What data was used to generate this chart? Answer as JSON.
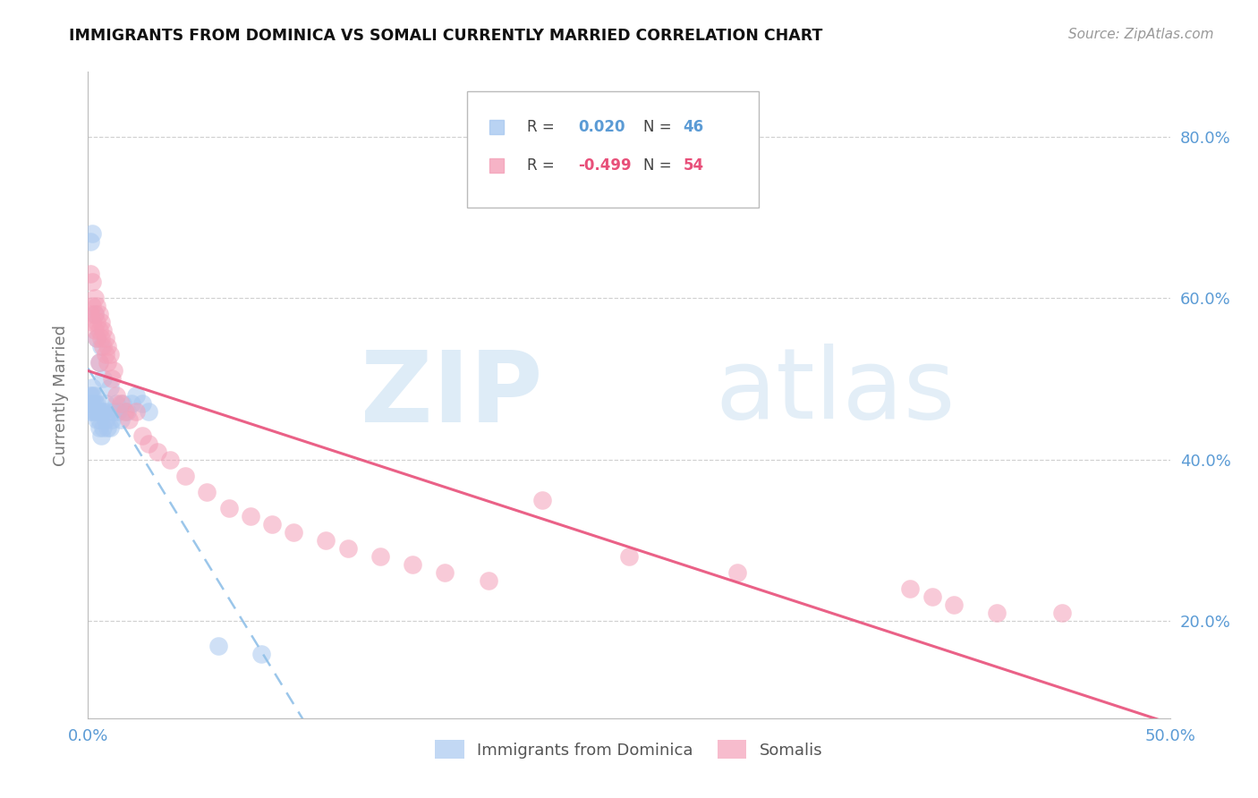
{
  "title": "IMMIGRANTS FROM DOMINICA VS SOMALI CURRENTLY MARRIED CORRELATION CHART",
  "source": "Source: ZipAtlas.com",
  "ylabel": "Currently Married",
  "xlim": [
    0.0,
    0.5
  ],
  "ylim": [
    0.08,
    0.88
  ],
  "blue_color": "#a8c8f0",
  "pink_color": "#f4a0b8",
  "trend_blue_color": "#90c0e8",
  "trend_pink_color": "#e8507a",
  "blue_alpha": 0.55,
  "pink_alpha": 0.55,
  "grid_color": "#cccccc",
  "spine_color": "#bbbbbb",
  "tick_color": "#5b9bd5",
  "ylabel_color": "#777777",
  "title_color": "#111111",
  "source_color": "#999999",
  "watermark_zip_color": "#d0e4f4",
  "watermark_atlas_color": "#c8dff0",
  "legend_r1": "0.020",
  "legend_n1": "46",
  "legend_r2": "-0.499",
  "legend_n2": "54",
  "dominica_x": [
    0.001,
    0.001,
    0.001,
    0.001,
    0.002,
    0.002,
    0.002,
    0.002,
    0.002,
    0.003,
    0.003,
    0.003,
    0.003,
    0.004,
    0.004,
    0.004,
    0.004,
    0.005,
    0.005,
    0.005,
    0.005,
    0.006,
    0.006,
    0.006,
    0.007,
    0.007,
    0.007,
    0.008,
    0.008,
    0.009,
    0.009,
    0.01,
    0.01,
    0.011,
    0.012,
    0.013,
    0.014,
    0.015,
    0.016,
    0.018,
    0.02,
    0.022,
    0.025,
    0.028,
    0.06,
    0.08
  ],
  "dominica_y": [
    0.46,
    0.47,
    0.48,
    0.67,
    0.46,
    0.47,
    0.48,
    0.49,
    0.68,
    0.46,
    0.47,
    0.48,
    0.58,
    0.45,
    0.46,
    0.47,
    0.55,
    0.44,
    0.45,
    0.46,
    0.52,
    0.43,
    0.46,
    0.54,
    0.44,
    0.46,
    0.5,
    0.45,
    0.47,
    0.44,
    0.46,
    0.44,
    0.49,
    0.45,
    0.46,
    0.47,
    0.46,
    0.45,
    0.47,
    0.46,
    0.47,
    0.48,
    0.47,
    0.46,
    0.17,
    0.16
  ],
  "somali_x": [
    0.001,
    0.001,
    0.002,
    0.002,
    0.002,
    0.003,
    0.003,
    0.003,
    0.004,
    0.004,
    0.004,
    0.005,
    0.005,
    0.005,
    0.006,
    0.006,
    0.007,
    0.007,
    0.008,
    0.008,
    0.009,
    0.009,
    0.01,
    0.011,
    0.012,
    0.013,
    0.015,
    0.017,
    0.019,
    0.022,
    0.025,
    0.028,
    0.032,
    0.038,
    0.045,
    0.055,
    0.065,
    0.075,
    0.085,
    0.095,
    0.11,
    0.12,
    0.135,
    0.15,
    0.165,
    0.185,
    0.21,
    0.25,
    0.3,
    0.38,
    0.39,
    0.4,
    0.42,
    0.45
  ],
  "somali_y": [
    0.63,
    0.58,
    0.59,
    0.57,
    0.62,
    0.58,
    0.6,
    0.56,
    0.59,
    0.57,
    0.55,
    0.58,
    0.56,
    0.52,
    0.55,
    0.57,
    0.54,
    0.56,
    0.53,
    0.55,
    0.52,
    0.54,
    0.53,
    0.5,
    0.51,
    0.48,
    0.47,
    0.46,
    0.45,
    0.46,
    0.43,
    0.42,
    0.41,
    0.4,
    0.38,
    0.36,
    0.34,
    0.33,
    0.32,
    0.31,
    0.3,
    0.29,
    0.28,
    0.27,
    0.26,
    0.25,
    0.35,
    0.28,
    0.26,
    0.24,
    0.23,
    0.22,
    0.21,
    0.21
  ]
}
